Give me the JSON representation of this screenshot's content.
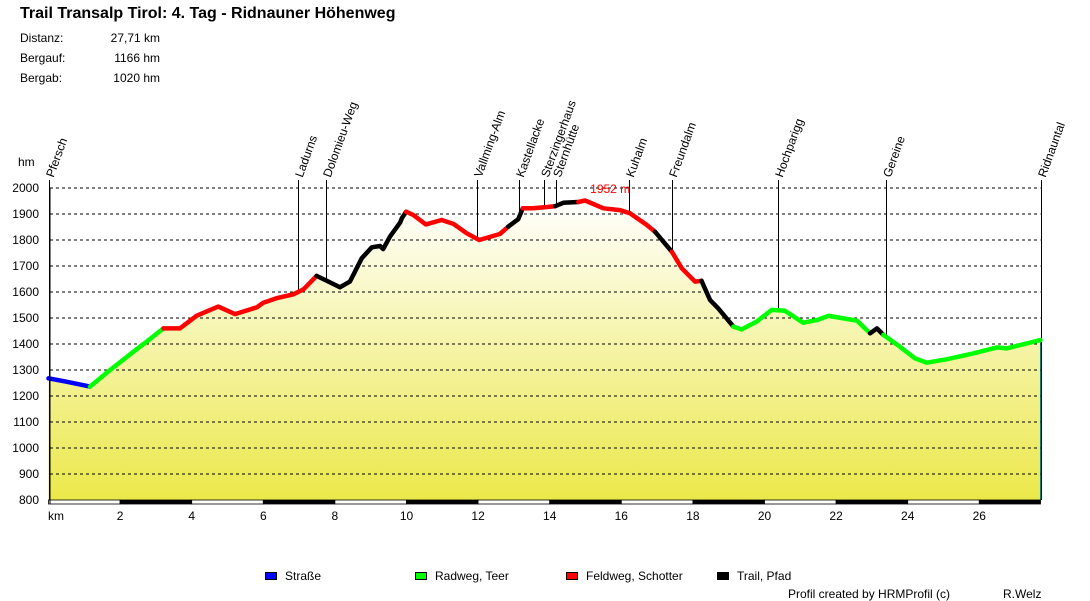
{
  "chart_data": {
    "type": "area",
    "title": "Trail Transalp Tirol: 4. Tag - Ridnauner Höhenweg",
    "stats": [
      {
        "label": "Distanz:",
        "value": "27,71 km"
      },
      {
        "label": "Bergauf:",
        "value": "1166 hm"
      },
      {
        "label": "Bergab:",
        "value": "1020 hm"
      }
    ],
    "xlabel": "km",
    "ylabel": "hm",
    "xlim": [
      0,
      27.71
    ],
    "ylim": [
      800,
      2000
    ],
    "xticks": [
      2,
      4,
      6,
      8,
      10,
      12,
      14,
      16,
      18,
      20,
      22,
      24,
      26
    ],
    "yticks": [
      800,
      900,
      1000,
      1100,
      1200,
      1300,
      1400,
      1500,
      1600,
      1700,
      1800,
      1900,
      2000
    ],
    "grid": true,
    "fill_colors": {
      "top": "#ffffff",
      "bottom": "#ebe84a"
    },
    "peak": {
      "label": "1952 m",
      "km": 14.99,
      "elev": 1952,
      "color": "#ff0000"
    },
    "waypoints": [
      {
        "name": "Pfersch",
        "km": 0
      },
      {
        "name": "Ladurns",
        "km": 6.97
      },
      {
        "name": "Dolomieu-Weg",
        "km": 7.75
      },
      {
        "name": "Vallming-Alm",
        "km": 11.97
      },
      {
        "name": "Kastellacke",
        "km": 13.14
      },
      {
        "name": "Sterzingerhaus",
        "km": 13.84
      },
      {
        "name": "Sternhütte",
        "km": 14.18
      },
      {
        "name": "Kuhalm",
        "km": 16.21
      },
      {
        "name": "Freundalm",
        "km": 17.42
      },
      {
        "name": "Hochparigg",
        "km": 20.38
      },
      {
        "name": "Gereine",
        "km": 23.4
      },
      {
        "name": "Ridnauntal",
        "km": 27.71
      }
    ],
    "legend": [
      {
        "key": "strasse",
        "label": "Straße",
        "color": "#0000ff"
      },
      {
        "key": "radweg",
        "label": "Radweg, Teer",
        "color": "#00ff00"
      },
      {
        "key": "feldweg",
        "label": "Feldweg, Schotter",
        "color": "#ff0000"
      },
      {
        "key": "trail",
        "label": "Trail, Pfad",
        "color": "#000000"
      }
    ],
    "segments": [
      {
        "surface": "strasse",
        "points": [
          [
            0,
            1268
          ],
          [
            0.5,
            1255
          ],
          [
            1.16,
            1236
          ]
        ]
      },
      {
        "surface": "radweg",
        "points": [
          [
            1.16,
            1236
          ],
          [
            1.72,
            1300
          ],
          [
            2.37,
            1370
          ],
          [
            2.74,
            1409
          ],
          [
            3.21,
            1460
          ]
        ]
      },
      {
        "surface": "feldweg",
        "points": [
          [
            3.21,
            1460
          ],
          [
            3.67,
            1460
          ],
          [
            4.14,
            1509
          ],
          [
            4.74,
            1544
          ],
          [
            5.21,
            1515
          ],
          [
            5.82,
            1541
          ],
          [
            6.0,
            1559
          ],
          [
            6.37,
            1576
          ],
          [
            6.84,
            1591
          ],
          [
            7.12,
            1610
          ],
          [
            7.49,
            1662
          ]
        ]
      },
      {
        "surface": "trail",
        "points": [
          [
            7.49,
            1662
          ],
          [
            7.82,
            1640
          ],
          [
            8.14,
            1618
          ],
          [
            8.42,
            1640
          ],
          [
            8.75,
            1730
          ],
          [
            9.03,
            1772
          ],
          [
            9.26,
            1777
          ],
          [
            9.35,
            1765
          ],
          [
            9.54,
            1813
          ],
          [
            9.82,
            1867
          ],
          [
            9.87,
            1883
          ],
          [
            9.99,
            1909
          ]
        ]
      },
      {
        "surface": "feldweg",
        "points": [
          [
            9.99,
            1909
          ],
          [
            10.19,
            1896
          ],
          [
            10.54,
            1860
          ],
          [
            10.98,
            1877
          ],
          [
            11.31,
            1862
          ],
          [
            11.68,
            1826
          ],
          [
            12.03,
            1800
          ],
          [
            12.61,
            1823
          ],
          [
            12.84,
            1851
          ]
        ]
      },
      {
        "surface": "trail",
        "points": [
          [
            12.84,
            1851
          ],
          [
            13.12,
            1880
          ],
          [
            13.25,
            1922
          ]
        ]
      },
      {
        "surface": "feldweg",
        "points": [
          [
            13.25,
            1922
          ],
          [
            13.54,
            1922
          ],
          [
            14.15,
            1930
          ]
        ]
      },
      {
        "surface": "trail",
        "points": [
          [
            14.15,
            1930
          ],
          [
            14.38,
            1943
          ],
          [
            14.8,
            1946
          ]
        ]
      },
      {
        "surface": "feldweg",
        "points": [
          [
            14.8,
            1946
          ],
          [
            14.99,
            1952
          ],
          [
            15.5,
            1922
          ],
          [
            15.96,
            1915
          ],
          [
            16.24,
            1903
          ],
          [
            16.71,
            1858
          ],
          [
            16.94,
            1832
          ]
        ]
      },
      {
        "surface": "trail",
        "points": [
          [
            16.94,
            1832
          ],
          [
            17.41,
            1755
          ]
        ]
      },
      {
        "surface": "feldweg",
        "points": [
          [
            17.41,
            1755
          ],
          [
            17.69,
            1691
          ],
          [
            18.06,
            1640
          ],
          [
            18.24,
            1643
          ]
        ]
      },
      {
        "surface": "trail",
        "points": [
          [
            18.24,
            1643
          ],
          [
            18.48,
            1569
          ],
          [
            18.71,
            1537
          ],
          [
            19.13,
            1467
          ]
        ]
      },
      {
        "surface": "radweg",
        "points": [
          [
            19.13,
            1467
          ],
          [
            19.36,
            1456
          ],
          [
            19.78,
            1486
          ],
          [
            20.2,
            1531
          ],
          [
            20.57,
            1528
          ],
          [
            21.08,
            1482
          ],
          [
            21.46,
            1492
          ],
          [
            21.79,
            1508
          ],
          [
            22.58,
            1490
          ],
          [
            22.95,
            1441
          ]
        ]
      },
      {
        "surface": "trail",
        "points": [
          [
            22.95,
            1441
          ],
          [
            23.14,
            1460
          ],
          [
            23.32,
            1435
          ]
        ]
      },
      {
        "surface": "radweg",
        "points": [
          [
            23.32,
            1435
          ],
          [
            23.78,
            1390
          ],
          [
            24.2,
            1345
          ],
          [
            24.53,
            1328
          ],
          [
            25.08,
            1341
          ],
          [
            25.83,
            1364
          ],
          [
            26.49,
            1387
          ],
          [
            26.76,
            1383
          ],
          [
            27.71,
            1415
          ]
        ]
      }
    ]
  },
  "footer": {
    "credit": "Profil created by HRMProfil (c)",
    "author": "R.Welz"
  }
}
